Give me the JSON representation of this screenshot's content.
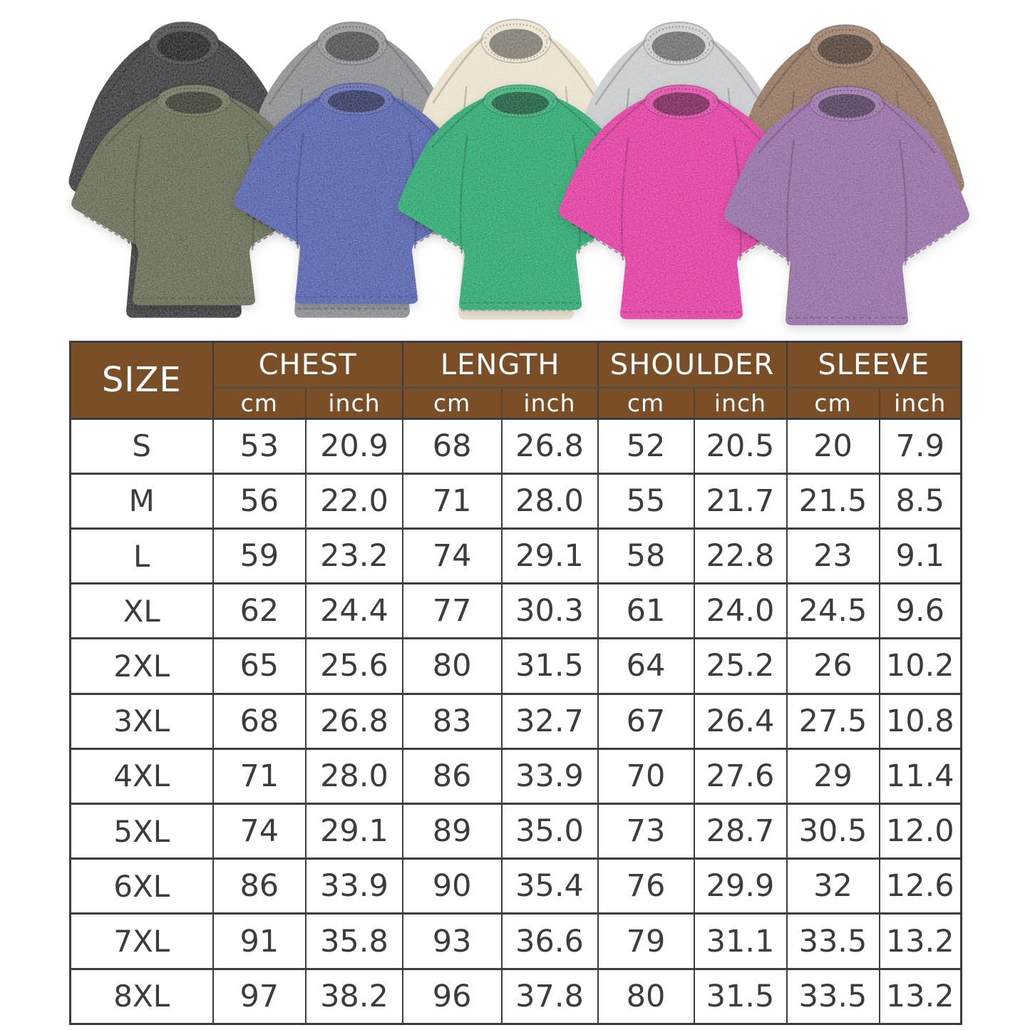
{
  "gallery": {
    "description": "ten acid-washed oversized crew-neck t-shirts, back row five colors, front row five colors",
    "shirts": [
      {
        "name": "black",
        "color": "#303032",
        "row": "back"
      },
      {
        "name": "gray",
        "color": "#85868a",
        "row": "back"
      },
      {
        "name": "cream",
        "color": "#e9e0ca",
        "row": "back"
      },
      {
        "name": "light-gray",
        "color": "#c6c7c9",
        "row": "back"
      },
      {
        "name": "brown",
        "color": "#8d6c55",
        "row": "back"
      },
      {
        "name": "army-green",
        "color": "#5a6147",
        "row": "front"
      },
      {
        "name": "blue",
        "color": "#4a57a6",
        "row": "front"
      },
      {
        "name": "green",
        "color": "#1fa165",
        "row": "front"
      },
      {
        "name": "rose-pink",
        "color": "#de309b",
        "row": "front"
      },
      {
        "name": "purple",
        "color": "#8c639e",
        "row": "front"
      }
    ]
  },
  "size_chart": {
    "colors": {
      "header_bg": "#7a4f28",
      "header_text": "#ffffff",
      "grid": "#3d3d3d",
      "cell_text": "#3c3c3c"
    },
    "header": {
      "size_label": "SIZE",
      "groups": [
        {
          "label": "CHEST"
        },
        {
          "label": "LENGTH"
        },
        {
          "label": "SHOULDER"
        },
        {
          "label": "SLEEVE"
        }
      ],
      "units": {
        "cm": "cm",
        "inch": "inch"
      }
    }
  },
  "chart_data": {
    "type": "table",
    "title": "T-shirt size chart (S-8XL), chest / length / shoulder / sleeve in cm and inch",
    "columns": [
      "SIZE",
      "CHEST cm",
      "CHEST inch",
      "LENGTH cm",
      "LENGTH inch",
      "SHOULDER cm",
      "SHOULDER inch",
      "SLEEVE cm",
      "SLEEVE inch"
    ],
    "rows": [
      [
        "S",
        "53",
        "20.9",
        "68",
        "26.8",
        "52",
        "20.5",
        "20",
        "7.9"
      ],
      [
        "M",
        "56",
        "22.0",
        "71",
        "28.0",
        "55",
        "21.7",
        "21.5",
        "8.5"
      ],
      [
        "L",
        "59",
        "23.2",
        "74",
        "29.1",
        "58",
        "22.8",
        "23",
        "9.1"
      ],
      [
        "XL",
        "62",
        "24.4",
        "77",
        "30.3",
        "61",
        "24.0",
        "24.5",
        "9.6"
      ],
      [
        "2XL",
        "65",
        "25.6",
        "80",
        "31.5",
        "64",
        "25.2",
        "26",
        "10.2"
      ],
      [
        "3XL",
        "68",
        "26.8",
        "83",
        "32.7",
        "67",
        "26.4",
        "27.5",
        "10.8"
      ],
      [
        "4XL",
        "71",
        "28.0",
        "86",
        "33.9",
        "70",
        "27.6",
        "29",
        "11.4"
      ],
      [
        "5XL",
        "74",
        "29.1",
        "89",
        "35.0",
        "73",
        "28.7",
        "30.5",
        "12.0"
      ],
      [
        "6XL",
        "86",
        "33.9",
        "90",
        "35.4",
        "76",
        "29.9",
        "32",
        "12.6"
      ],
      [
        "7XL",
        "91",
        "35.8",
        "93",
        "36.6",
        "79",
        "31.1",
        "33.5",
        "13.2"
      ],
      [
        "8XL",
        "97",
        "38.2",
        "96",
        "37.8",
        "80",
        "31.5",
        "33.5",
        "13.2"
      ]
    ]
  }
}
